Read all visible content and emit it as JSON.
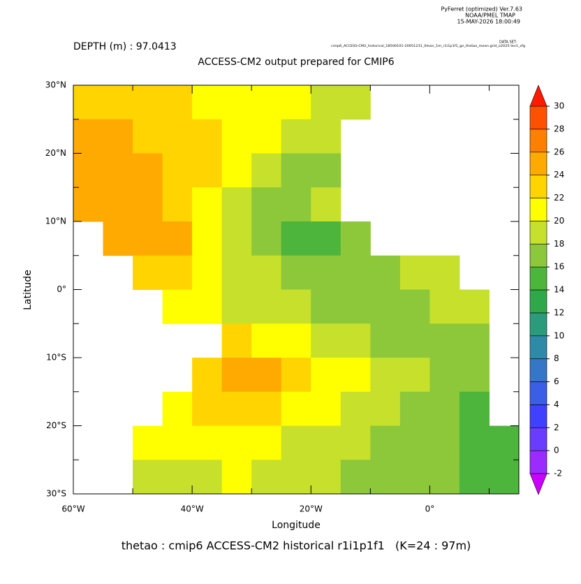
{
  "header": {
    "software": "PyFerret (optimized) Ver.7.63",
    "org": "NOAA/PMEL TMAP",
    "timestamp": "15-MAY-2026 18:00:49",
    "dataset_label": "DATA SET:",
    "dataset": "cmip6_ACCESS-CM2_historical_18500101-20051231_0mon_1m_r1i1p1f1_gn_thetao_mean.grid_o2025-lev1_sfg",
    "depth": "DEPTH (m) : 97.0413"
  },
  "chart_data": {
    "type": "heatmap",
    "title": "ACCESS-CM2 output prepared for CMIP6",
    "caption": "thetao : cmip6 ACCESS-CM2 historical r1i1p1f1   (K=24 : 97m)",
    "xlabel": "Longitude",
    "ylabel": "Latitude",
    "x": [
      -57.5,
      -52.5,
      -47.5,
      -42.5,
      -37.5,
      -32.5,
      -27.5,
      -22.5,
      -17.5,
      -12.5,
      -7.5,
      -2.5,
      2.5,
      7.5,
      12.5
    ],
    "y": [
      27.5,
      22.5,
      17.5,
      12.5,
      7.5,
      2.5,
      -2.5,
      -7.5,
      -12.5,
      -17.5,
      -22.5,
      -27.5
    ],
    "cell_size": 5,
    "z": [
      [
        22,
        23,
        22,
        22,
        21,
        21,
        20,
        20,
        19,
        19,
        null,
        null,
        null,
        null,
        null
      ],
      [
        24,
        24,
        23,
        23,
        22,
        21,
        20,
        19,
        18,
        null,
        null,
        null,
        null,
        null,
        null
      ],
      [
        25,
        25,
        24,
        23,
        22,
        20,
        19,
        17,
        17,
        null,
        null,
        null,
        null,
        null,
        null
      ],
      [
        25,
        25,
        24,
        22,
        20,
        18,
        16,
        16,
        18,
        null,
        null,
        null,
        null,
        null,
        null
      ],
      [
        null,
        24,
        25,
        24,
        21,
        18,
        16,
        15,
        15,
        17,
        null,
        null,
        null,
        null,
        null
      ],
      [
        null,
        null,
        22,
        22,
        20,
        19,
        18,
        17,
        17,
        17,
        17,
        18,
        18,
        null,
        null
      ],
      [
        null,
        null,
        null,
        21,
        20,
        19,
        18,
        18,
        17,
        17,
        17,
        17,
        18,
        18,
        null
      ],
      [
        null,
        null,
        null,
        null,
        null,
        22,
        21,
        20,
        19,
        18,
        17,
        17,
        17,
        17,
        null
      ],
      [
        null,
        null,
        null,
        null,
        23,
        24,
        24,
        23,
        21,
        20,
        19,
        18,
        17,
        16,
        null
      ],
      [
        null,
        null,
        null,
        21,
        22,
        22,
        22,
        21,
        20,
        19,
        18,
        17,
        16,
        15,
        null
      ],
      [
        null,
        null,
        20,
        20,
        21,
        21,
        20,
        19,
        19,
        18,
        17,
        17,
        16,
        15,
        15
      ],
      [
        null,
        null,
        19,
        19,
        19,
        20,
        19,
        18,
        18,
        17,
        17,
        16,
        16,
        15,
        15
      ]
    ],
    "xlim": [
      -60,
      15
    ],
    "ylim": [
      -30,
      30
    ],
    "xticks": [
      {
        "value": -60,
        "label": "60°W"
      },
      {
        "value": -40,
        "label": "40°W"
      },
      {
        "value": -20,
        "label": "20°W"
      },
      {
        "value": 0,
        "label": "0°"
      }
    ],
    "xminor": [
      -50,
      -30,
      -10,
      10
    ],
    "yticks": [
      {
        "value": 30,
        "label": "30°N"
      },
      {
        "value": 20,
        "label": "20°N"
      },
      {
        "value": 10,
        "label": "10°N"
      },
      {
        "value": 0,
        "label": "0°"
      },
      {
        "value": -10,
        "label": "10°S"
      },
      {
        "value": -20,
        "label": "20°S"
      },
      {
        "value": -30,
        "label": "30°S"
      }
    ],
    "yminor": [
      25,
      15,
      5,
      -5,
      -15,
      -25
    ],
    "levels": [
      -2,
      0,
      2,
      4,
      6,
      8,
      10,
      12,
      14,
      16,
      18,
      20,
      22,
      24,
      26,
      28,
      30
    ],
    "colors": [
      "#9a2cff",
      "#6a3cff",
      "#4040ff",
      "#3b5ee8",
      "#3576c8",
      "#2f8aa8",
      "#2a9c7c",
      "#2fa84a",
      "#4db43c",
      "#8cc83a",
      "#c6e02c",
      "#ffff00",
      "#ffd400",
      "#ffaa00",
      "#ff8000",
      "#ff5000"
    ],
    "under_color": "#cc00ff",
    "over_color": "#ff1a00"
  }
}
